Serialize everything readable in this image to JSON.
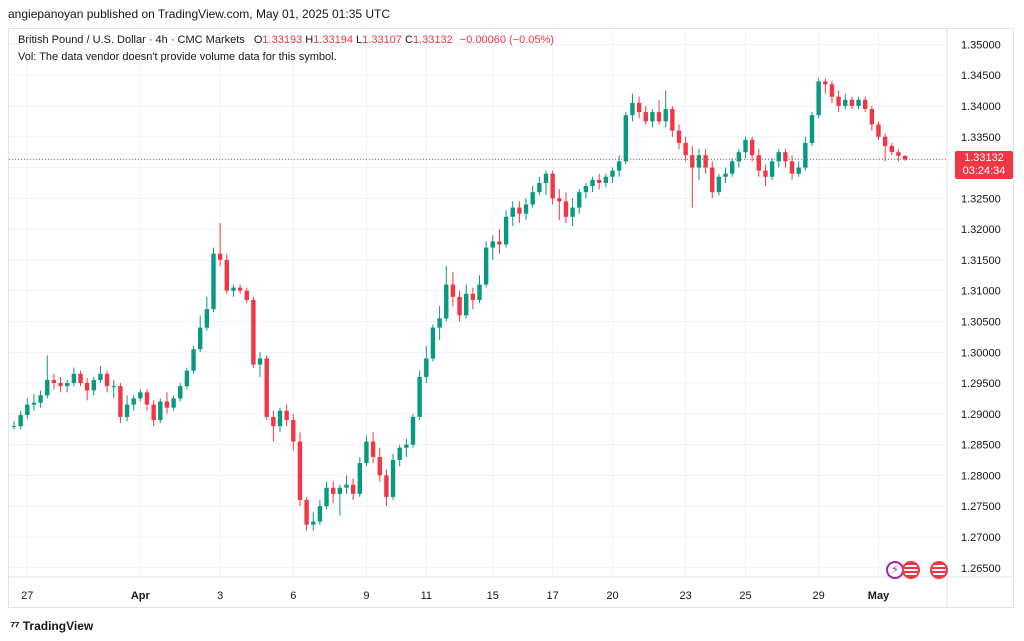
{
  "header": {
    "published_text": "angiepanoyan published on TradingView.com, May 01, 2025 01:35 UTC"
  },
  "legend": {
    "symbol": "British Pound / U.S. Dollar · 4h · CMC Markets",
    "o_label": "O",
    "o_value": "1.33193",
    "h_label": "H",
    "h_value": "1.33194",
    "l_label": "L",
    "l_value": "1.33107",
    "c_label": "C",
    "c_value": "1.33132",
    "change": "−0.00060 (−0.05%)",
    "volume_note": "Vol: The data vendor doesn't provide volume data for this symbol."
  },
  "price_tag": {
    "price": "1.33132",
    "countdown": "03:24:34"
  },
  "footer": {
    "brand": "TradingView",
    "logo_icon": "tradingview-logo-icon"
  },
  "colors": {
    "up": "#089981",
    "down": "#f23645",
    "grid": "#f0f3fa",
    "text": "#131722"
  },
  "chart_data": {
    "type": "candlestick",
    "y_axis": {
      "position": "right",
      "ylim": [
        1.2635,
        1.3525
      ],
      "ticks": [
        "1.35000",
        "1.34500",
        "1.34000",
        "1.33500",
        "1.33000",
        "1.32500",
        "1.32000",
        "1.31500",
        "1.31000",
        "1.30500",
        "1.30000",
        "1.29500",
        "1.29000",
        "1.28500",
        "1.28000",
        "1.27500",
        "1.27000",
        "1.26500"
      ]
    },
    "x_axis": {
      "tick_labels": [
        "27",
        "Apr",
        "3",
        "6",
        "9",
        "11",
        "15",
        "17",
        "20",
        "23",
        "25",
        "29",
        "May"
      ],
      "tick_index": [
        2,
        19,
        31,
        42,
        53,
        62,
        72,
        81,
        90,
        101,
        110,
        121,
        130
      ]
    },
    "grid": true,
    "last_price_line": 1.33132,
    "candles": [
      [
        1.288,
        1.2888,
        1.2875,
        1.288
      ],
      [
        1.288,
        1.2905,
        1.2875,
        1.2898
      ],
      [
        1.2898,
        1.2925,
        1.2892,
        1.2915
      ],
      [
        1.2915,
        1.2932,
        1.2905,
        1.2918
      ],
      [
        1.2918,
        1.2938,
        1.291,
        1.293
      ],
      [
        1.293,
        1.2995,
        1.2925,
        1.2955
      ],
      [
        1.2955,
        1.2965,
        1.294,
        1.295
      ],
      [
        1.295,
        1.296,
        1.2935,
        1.2945
      ],
      [
        1.2945,
        1.2955,
        1.2935,
        1.295
      ],
      [
        1.295,
        1.2975,
        1.2945,
        1.2965
      ],
      [
        1.2965,
        1.297,
        1.2945,
        1.295
      ],
      [
        1.295,
        1.2958,
        1.2922,
        1.2938
      ],
      [
        1.2938,
        1.296,
        1.293,
        1.2955
      ],
      [
        1.2955,
        1.2978,
        1.295,
        1.2965
      ],
      [
        1.2965,
        1.297,
        1.2935,
        1.2945
      ],
      [
        1.2945,
        1.2955,
        1.2925,
        1.2945
      ],
      [
        1.2945,
        1.295,
        1.2885,
        1.2895
      ],
      [
        1.2895,
        1.293,
        1.2888,
        1.2915
      ],
      [
        1.2915,
        1.293,
        1.2905,
        1.2925
      ],
      [
        1.2925,
        1.294,
        1.292,
        1.2935
      ],
      [
        1.2935,
        1.294,
        1.2905,
        1.2915
      ],
      [
        1.2915,
        1.2922,
        1.288,
        1.289
      ],
      [
        1.289,
        1.2925,
        1.2885,
        1.292
      ],
      [
        1.292,
        1.2935,
        1.29,
        1.291
      ],
      [
        1.291,
        1.293,
        1.2905,
        1.2925
      ],
      [
        1.2925,
        1.295,
        1.292,
        1.2945
      ],
      [
        1.2945,
        1.2975,
        1.294,
        1.297
      ],
      [
        1.297,
        1.301,
        1.2965,
        1.3005
      ],
      [
        1.3005,
        1.306,
        1.3,
        1.304
      ],
      [
        1.304,
        1.309,
        1.3035,
        1.307
      ],
      [
        1.307,
        1.317,
        1.3065,
        1.316
      ],
      [
        1.316,
        1.321,
        1.314,
        1.315
      ],
      [
        1.315,
        1.316,
        1.3095,
        1.31
      ],
      [
        1.31,
        1.311,
        1.309,
        1.3105
      ],
      [
        1.3105,
        1.311,
        1.3095,
        1.31
      ],
      [
        1.31,
        1.3105,
        1.308,
        1.3085
      ],
      [
        1.3085,
        1.309,
        1.2975,
        1.298
      ],
      [
        1.298,
        1.3,
        1.296,
        1.299
      ],
      [
        1.299,
        1.2995,
        1.289,
        1.2895
      ],
      [
        1.2895,
        1.2905,
        1.2855,
        1.288
      ],
      [
        1.288,
        1.291,
        1.287,
        1.2905
      ],
      [
        1.2905,
        1.2915,
        1.288,
        1.289
      ],
      [
        1.289,
        1.29,
        1.284,
        1.2855
      ],
      [
        1.2855,
        1.287,
        1.275,
        1.276
      ],
      [
        1.276,
        1.2765,
        1.271,
        1.272
      ],
      [
        1.272,
        1.274,
        1.271,
        1.2725
      ],
      [
        1.2725,
        1.276,
        1.272,
        1.275
      ],
      [
        1.275,
        1.279,
        1.2745,
        1.278
      ],
      [
        1.278,
        1.279,
        1.2755,
        1.277
      ],
      [
        1.277,
        1.2785,
        1.2735,
        1.278
      ],
      [
        1.278,
        1.28,
        1.277,
        1.2785
      ],
      [
        1.2785,
        1.2795,
        1.276,
        1.277
      ],
      [
        1.277,
        1.283,
        1.2765,
        1.282
      ],
      [
        1.282,
        1.2865,
        1.2815,
        1.2855
      ],
      [
        1.2855,
        1.287,
        1.282,
        1.283
      ],
      [
        1.283,
        1.2845,
        1.279,
        1.28
      ],
      [
        1.28,
        1.281,
        1.275,
        1.2765
      ],
      [
        1.2765,
        1.2835,
        1.276,
        1.2825
      ],
      [
        1.2825,
        1.285,
        1.2815,
        1.2845
      ],
      [
        1.2845,
        1.286,
        1.283,
        1.285
      ],
      [
        1.285,
        1.29,
        1.2845,
        1.2895
      ],
      [
        1.2895,
        1.297,
        1.289,
        1.296
      ],
      [
        1.296,
        1.301,
        1.295,
        1.299
      ],
      [
        1.299,
        1.3045,
        1.2985,
        1.304
      ],
      [
        1.304,
        1.3075,
        1.302,
        1.3055
      ],
      [
        1.3055,
        1.314,
        1.305,
        1.311
      ],
      [
        1.311,
        1.313,
        1.3075,
        1.309
      ],
      [
        1.309,
        1.31,
        1.305,
        1.306
      ],
      [
        1.306,
        1.311,
        1.3055,
        1.3095
      ],
      [
        1.3095,
        1.3105,
        1.307,
        1.3085
      ],
      [
        1.3085,
        1.3125,
        1.308,
        1.311
      ],
      [
        1.311,
        1.318,
        1.3105,
        1.317
      ],
      [
        1.317,
        1.319,
        1.315,
        1.318
      ],
      [
        1.318,
        1.32,
        1.316,
        1.3175
      ],
      [
        1.3175,
        1.323,
        1.317,
        1.322
      ],
      [
        1.322,
        1.3245,
        1.3205,
        1.3235
      ],
      [
        1.3235,
        1.3245,
        1.321,
        1.3225
      ],
      [
        1.3225,
        1.325,
        1.3215,
        1.324
      ],
      [
        1.324,
        1.327,
        1.3235,
        1.326
      ],
      [
        1.326,
        1.3285,
        1.3255,
        1.3275
      ],
      [
        1.3275,
        1.3295,
        1.3255,
        1.329
      ],
      [
        1.329,
        1.3295,
        1.324,
        1.325
      ],
      [
        1.325,
        1.3265,
        1.3215,
        1.3245
      ],
      [
        1.3245,
        1.326,
        1.321,
        1.322
      ],
      [
        1.322,
        1.325,
        1.3205,
        1.3235
      ],
      [
        1.3235,
        1.3265,
        1.3225,
        1.326
      ],
      [
        1.326,
        1.3275,
        1.325,
        1.327
      ],
      [
        1.327,
        1.3285,
        1.326,
        1.328
      ],
      [
        1.328,
        1.329,
        1.3265,
        1.3275
      ],
      [
        1.3275,
        1.329,
        1.3268,
        1.3285
      ],
      [
        1.3285,
        1.33,
        1.3275,
        1.3295
      ],
      [
        1.3295,
        1.332,
        1.3285,
        1.331
      ],
      [
        1.331,
        1.339,
        1.3305,
        1.3385
      ],
      [
        1.3385,
        1.342,
        1.3375,
        1.3405
      ],
      [
        1.3405,
        1.3415,
        1.338,
        1.339
      ],
      [
        1.339,
        1.34,
        1.337,
        1.3375
      ],
      [
        1.3375,
        1.3395,
        1.3365,
        1.339
      ],
      [
        1.339,
        1.341,
        1.337,
        1.3375
      ],
      [
        1.3375,
        1.3425,
        1.3365,
        1.3395
      ],
      [
        1.3395,
        1.34,
        1.335,
        1.336
      ],
      [
        1.336,
        1.337,
        1.333,
        1.334
      ],
      [
        1.334,
        1.335,
        1.331,
        1.332
      ],
      [
        1.332,
        1.3335,
        1.3235,
        1.33
      ],
      [
        1.33,
        1.333,
        1.328,
        1.332
      ],
      [
        1.332,
        1.333,
        1.329,
        1.33
      ],
      [
        1.33,
        1.331,
        1.325,
        1.326
      ],
      [
        1.326,
        1.329,
        1.3255,
        1.3285
      ],
      [
        1.3285,
        1.33,
        1.3275,
        1.329
      ],
      [
        1.329,
        1.3315,
        1.3285,
        1.331
      ],
      [
        1.331,
        1.333,
        1.33,
        1.3325
      ],
      [
        1.3325,
        1.335,
        1.3315,
        1.3345
      ],
      [
        1.3345,
        1.335,
        1.331,
        1.332
      ],
      [
        1.332,
        1.333,
        1.3285,
        1.3295
      ],
      [
        1.3295,
        1.3305,
        1.327,
        1.3285
      ],
      [
        1.3285,
        1.3315,
        1.328,
        1.331
      ],
      [
        1.331,
        1.333,
        1.33,
        1.3325
      ],
      [
        1.3325,
        1.333,
        1.33,
        1.331
      ],
      [
        1.331,
        1.332,
        1.328,
        1.329
      ],
      [
        1.329,
        1.331,
        1.3285,
        1.33
      ],
      [
        1.33,
        1.335,
        1.3295,
        1.334
      ],
      [
        1.334,
        1.339,
        1.3335,
        1.3385
      ],
      [
        1.3385,
        1.3445,
        1.338,
        1.344
      ],
      [
        1.344,
        1.3445,
        1.342,
        1.3435
      ],
      [
        1.3435,
        1.344,
        1.3405,
        1.3415
      ],
      [
        1.3415,
        1.3425,
        1.339,
        1.34
      ],
      [
        1.34,
        1.342,
        1.3395,
        1.341
      ],
      [
        1.341,
        1.3415,
        1.3395,
        1.34
      ],
      [
        1.34,
        1.3415,
        1.3395,
        1.341
      ],
      [
        1.341,
        1.3415,
        1.339,
        1.3395
      ],
      [
        1.3395,
        1.34,
        1.336,
        1.337
      ],
      [
        1.337,
        1.3375,
        1.3345,
        1.335
      ],
      [
        1.335,
        1.3355,
        1.331,
        1.3335
      ],
      [
        1.3335,
        1.334,
        1.332,
        1.3325
      ],
      [
        1.3325,
        1.333,
        1.331,
        1.3319
      ],
      [
        1.3319,
        1.332,
        1.3311,
        1.3313
      ]
    ]
  }
}
